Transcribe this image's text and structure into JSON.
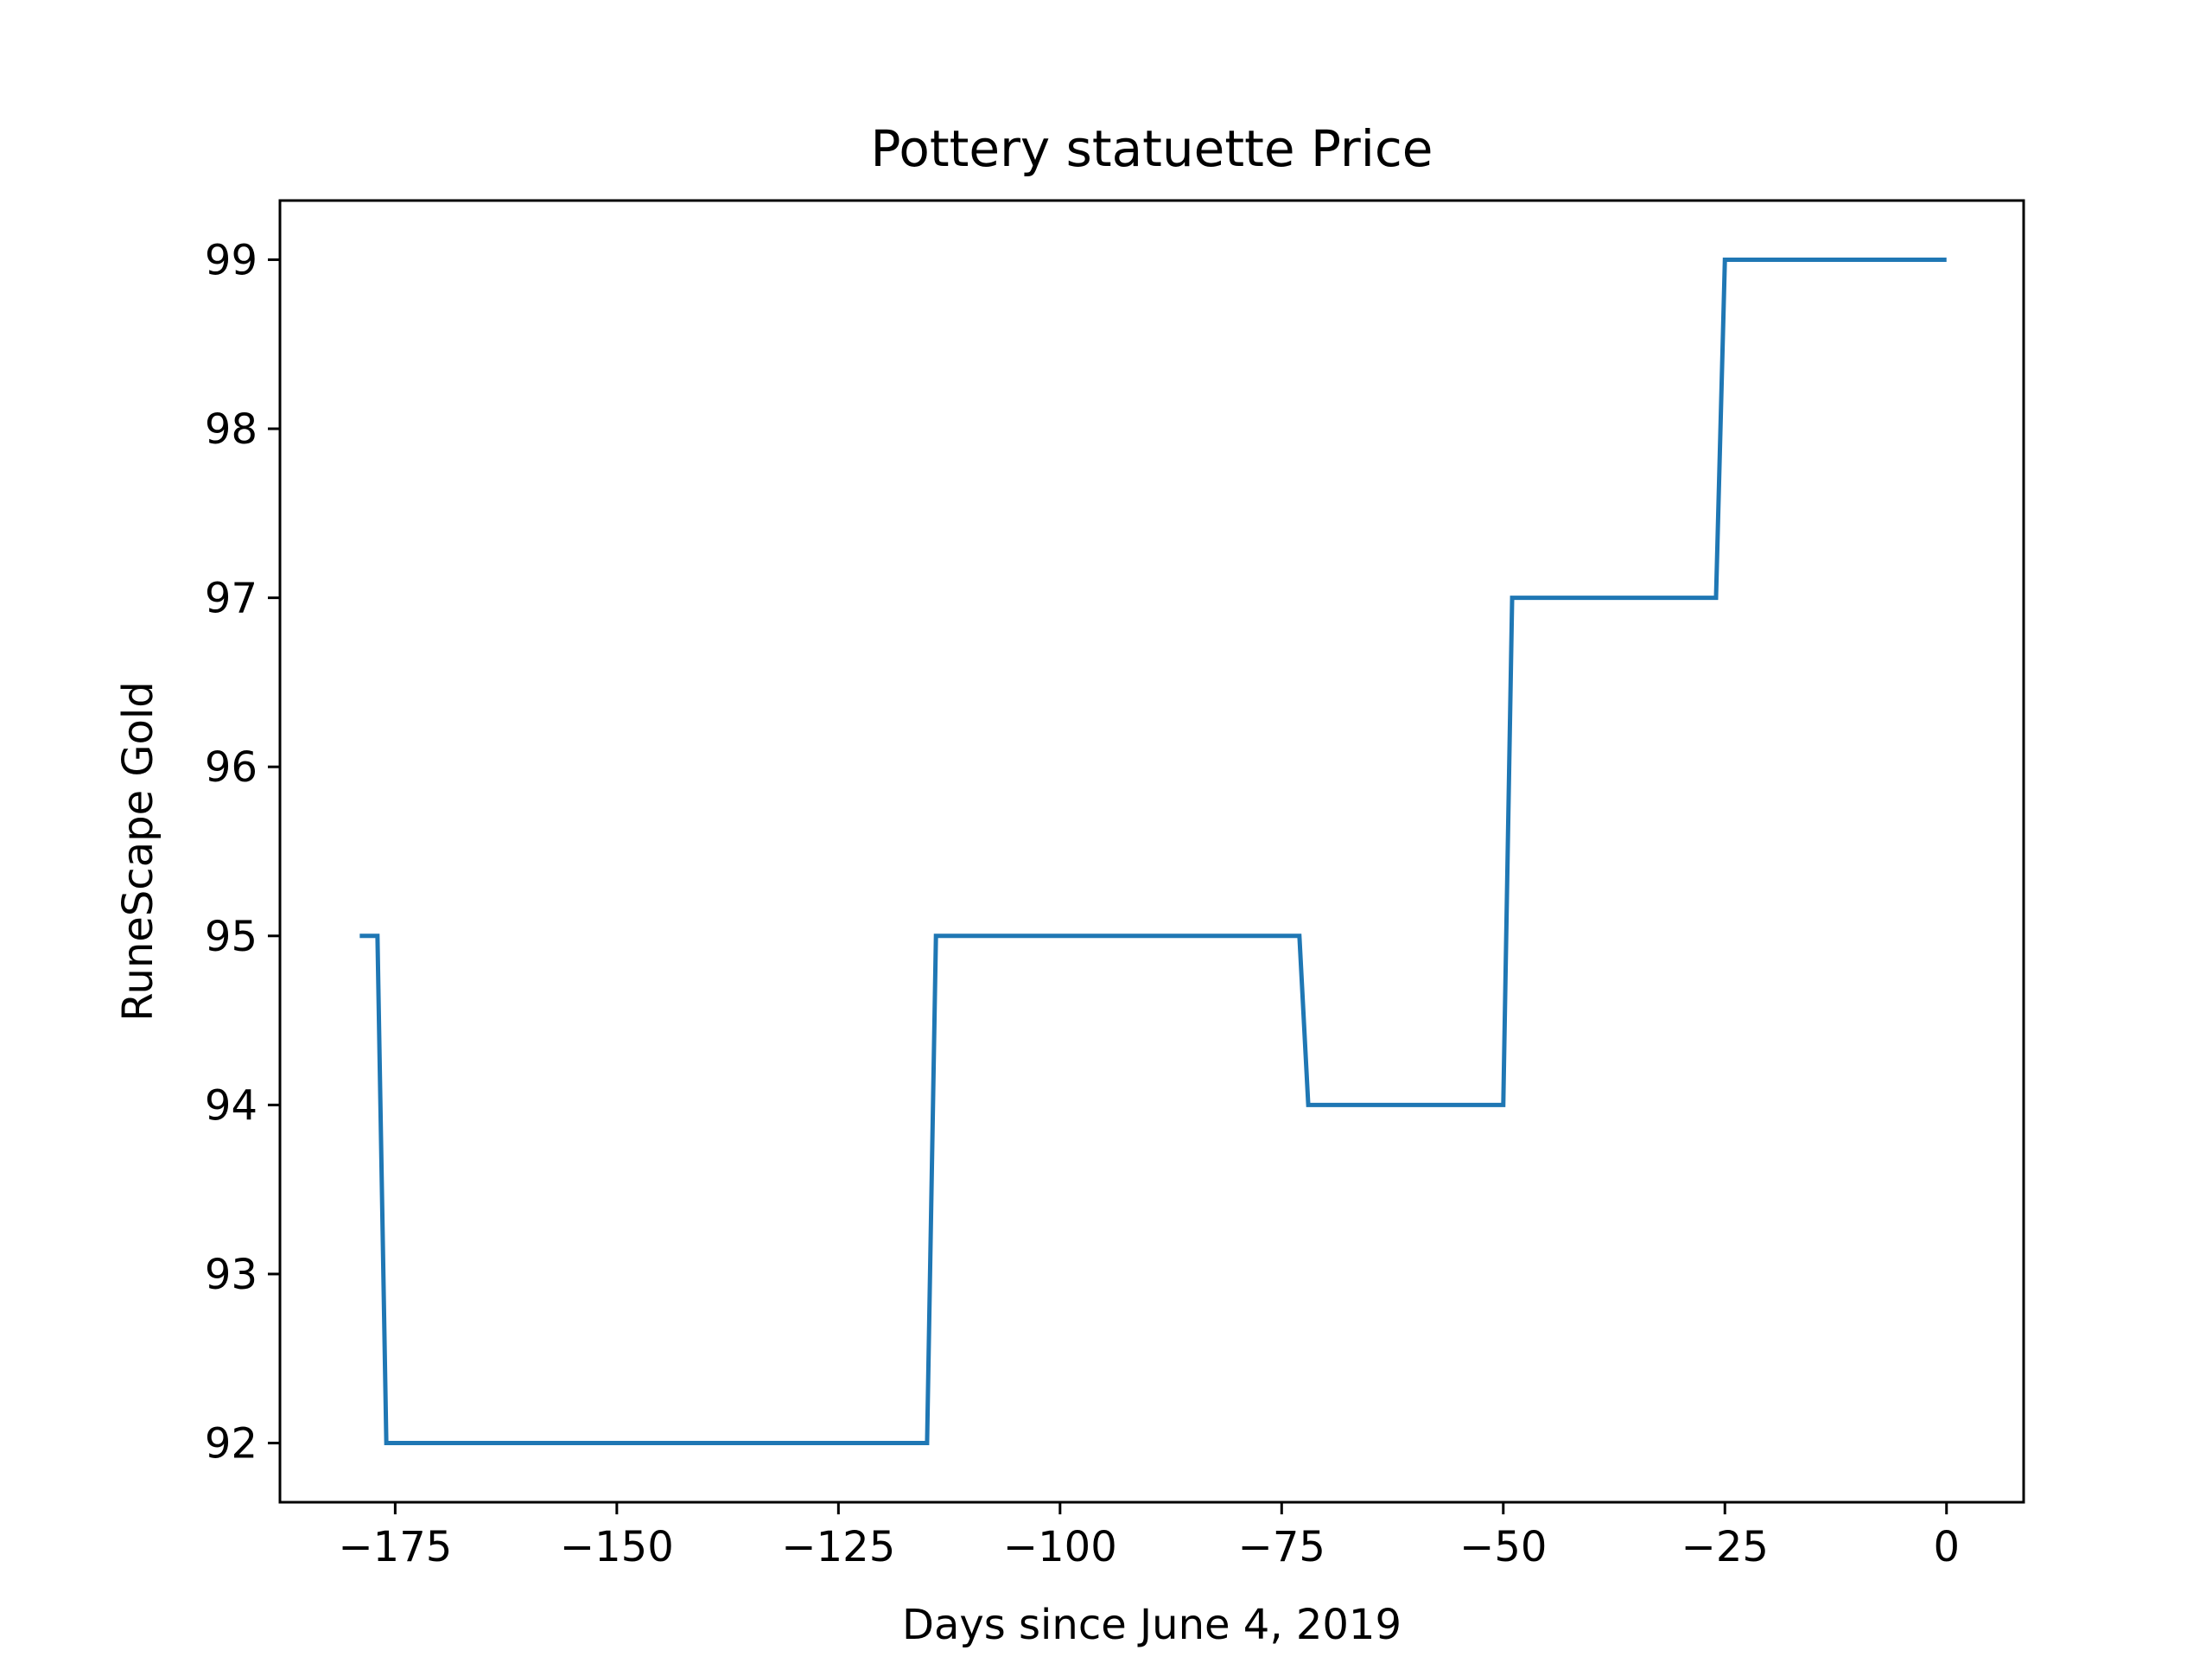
{
  "chart_data": {
    "type": "line",
    "title": "Pottery statuette Price",
    "xlabel": "Days since June 4, 2019",
    "ylabel": "RuneScape Gold",
    "xlim": [
      -188,
      8.7
    ],
    "ylim": [
      91.65,
      99.35
    ],
    "xticks": [
      -175,
      -150,
      -125,
      -100,
      -75,
      -50,
      -25,
      0
    ],
    "xtick_labels": [
      "−175",
      "−150",
      "−125",
      "−100",
      "−75",
      "−50",
      "−25",
      "0"
    ],
    "yticks": [
      92,
      93,
      94,
      95,
      96,
      97,
      98,
      99
    ],
    "ytick_labels": [
      "92",
      "93",
      "94",
      "95",
      "96",
      "97",
      "98",
      "99"
    ],
    "grid": false,
    "series": [
      {
        "color": "#1f77b4",
        "x": [
          -179,
          -177,
          -176,
          -115,
          -114,
          -73,
          -72,
          -50,
          -49,
          -26,
          -25,
          0
        ],
        "y": [
          95,
          95,
          92,
          92,
          95,
          95,
          94,
          94,
          97,
          97,
          99,
          99
        ]
      }
    ]
  }
}
